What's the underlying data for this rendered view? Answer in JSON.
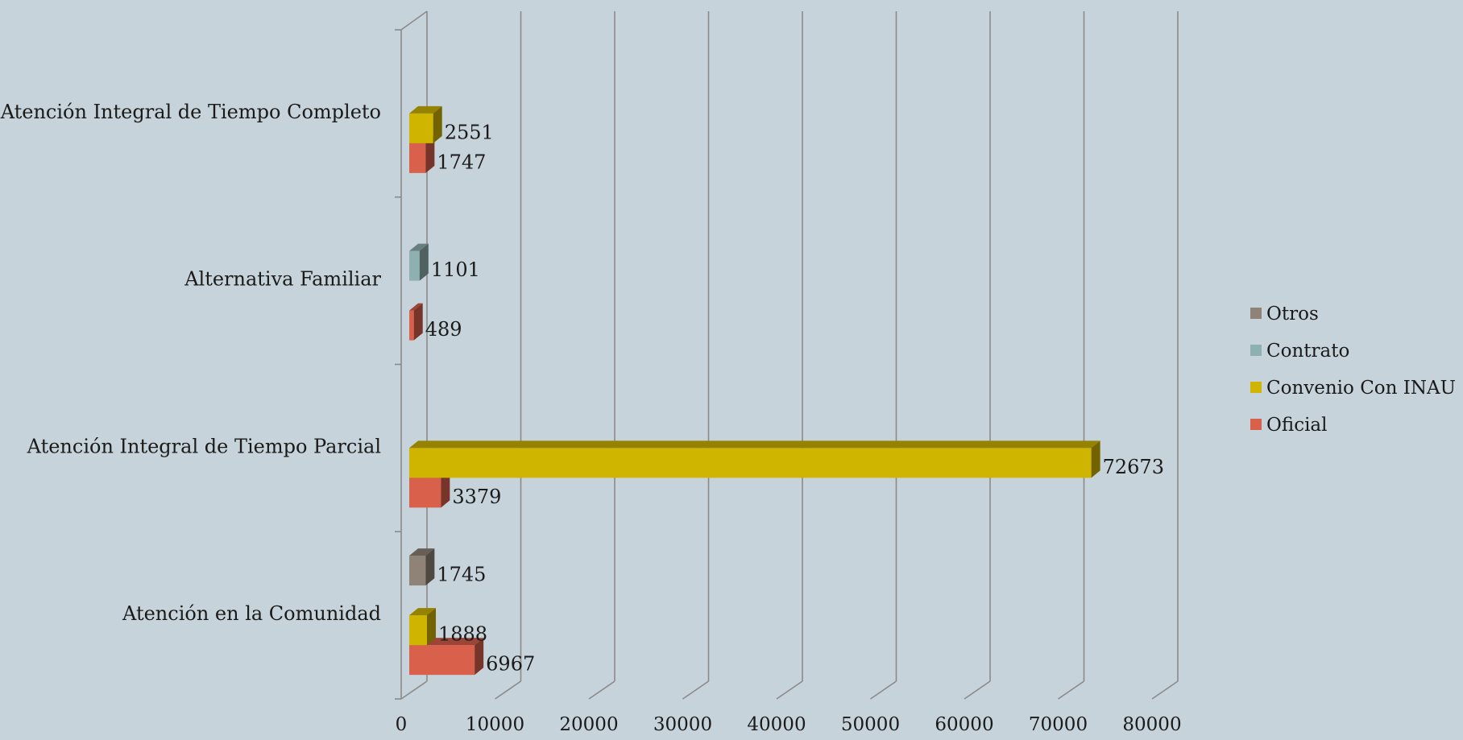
{
  "chart_data": {
    "type": "bar",
    "orientation": "horizontal",
    "style": "3d-clustered",
    "title": "",
    "xlabel": "",
    "ylabel": "",
    "xlim": [
      0,
      80000
    ],
    "x_ticks": [
      0,
      10000,
      20000,
      30000,
      40000,
      50000,
      60000,
      70000,
      80000
    ],
    "grid": true,
    "legend_position": "right",
    "categories": [
      "Atención en la Comunidad",
      "Atención Integral de Tiempo Parcial",
      "Alternativa Familiar",
      "Atención Integral de Tiempo Completo"
    ],
    "series": [
      {
        "name": "Oficial",
        "color": "#d9604b",
        "values": [
          6967,
          3379,
          489,
          1747
        ]
      },
      {
        "name": "Convenio Con INAU",
        "color": "#cfb400",
        "values": [
          1888,
          72673,
          null,
          2551
        ]
      },
      {
        "name": "Contrato",
        "color": "#8fb0b0",
        "values": [
          null,
          null,
          1101,
          null
        ]
      },
      {
        "name": "Otros",
        "color": "#8f8277",
        "values": [
          1745,
          null,
          null,
          null
        ]
      }
    ],
    "legend_order": [
      "Otros",
      "Contrato",
      "Convenio Con INAU",
      "Oficial"
    ]
  }
}
